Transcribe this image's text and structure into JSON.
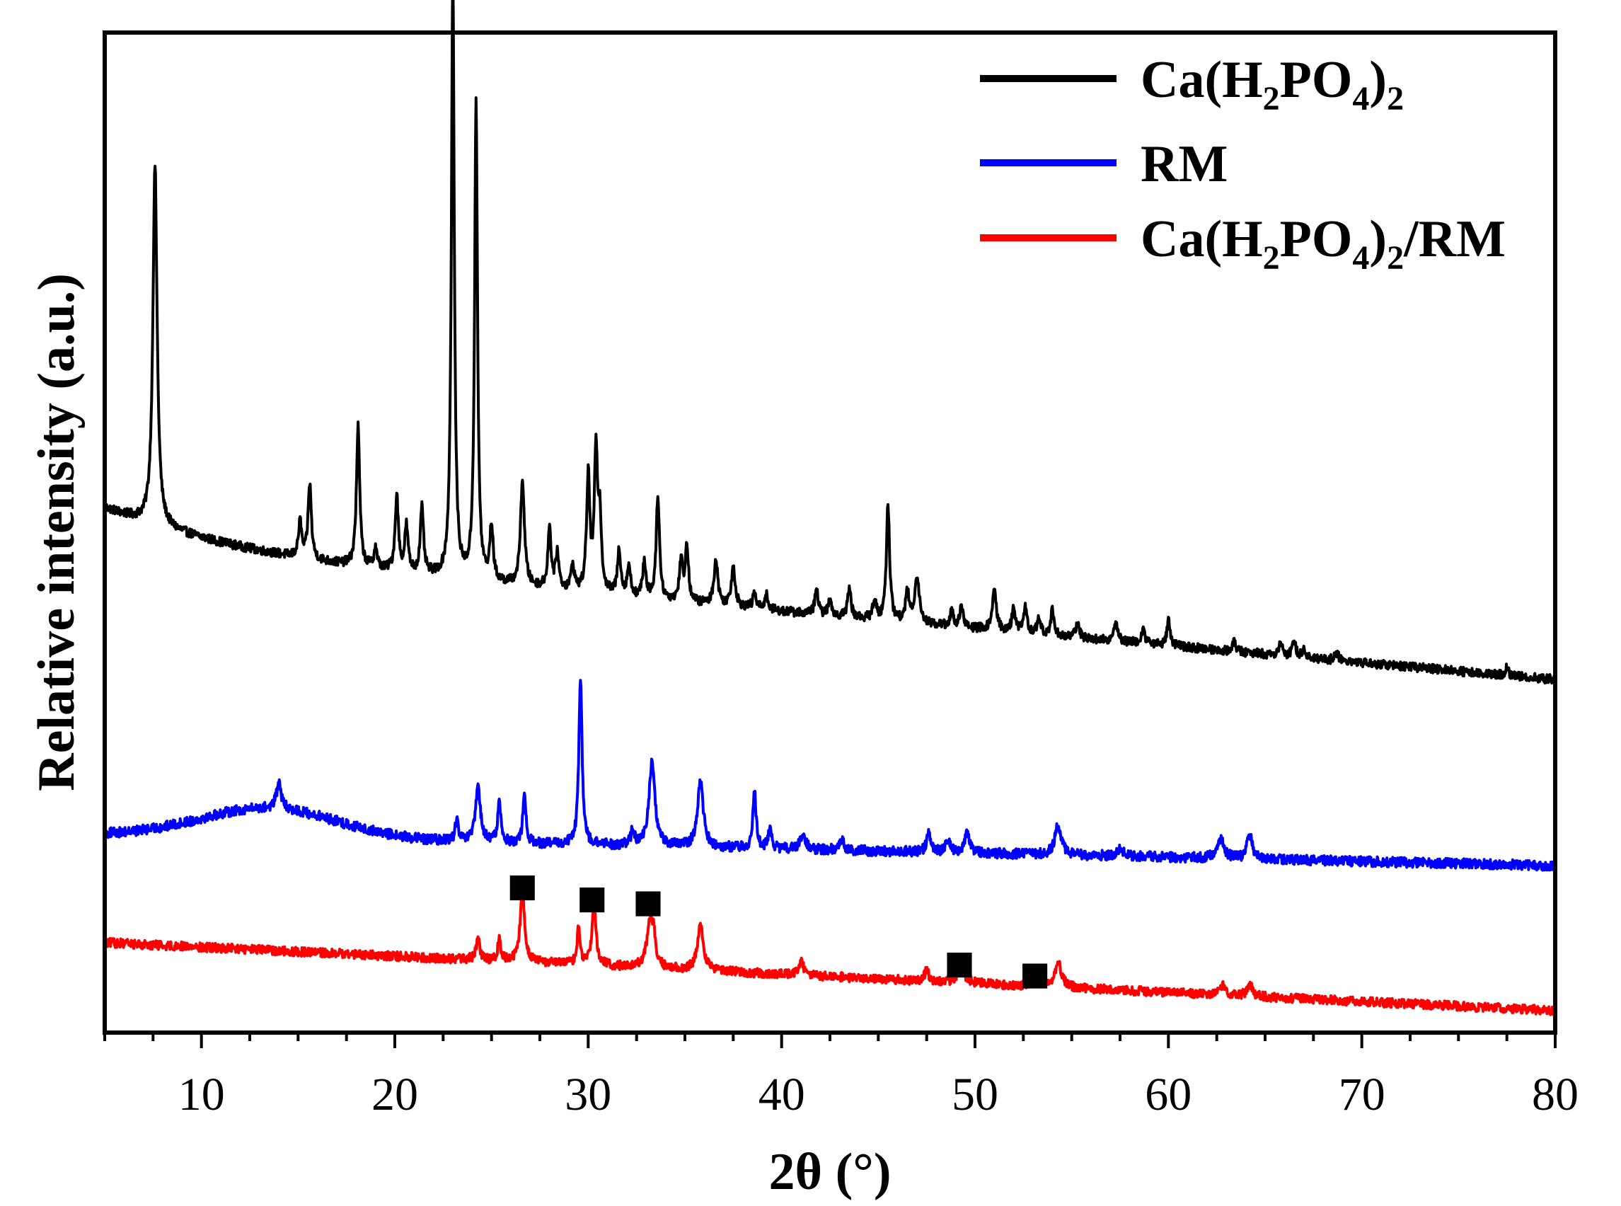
{
  "chart_data": {
    "type": "line",
    "title": "",
    "xlabel": "2θ (°)",
    "ylabel": "Relative intensity (a.u.)",
    "xlim": [
      5,
      80
    ],
    "ylim": [
      0,
      100
    ],
    "x_ticks": [
      10,
      20,
      30,
      40,
      50,
      60,
      70,
      80
    ],
    "x_tick_labels": [
      "10",
      "20",
      "30",
      "40",
      "50",
      "60",
      "70",
      "80"
    ],
    "y_ticks_shown": false,
    "legend_position": "top-right",
    "series": [
      {
        "name": "Ca(H2PO4)2",
        "legend_parts": {
          "a": "Ca(H",
          "sub1": "2",
          "b": "PO",
          "sub2": "4",
          "c": ")",
          "sub3": "2",
          "d": ""
        },
        "color": "#000000",
        "baseline_start": 48.5,
        "baseline_end": 35.8,
        "decay": 0.06,
        "noise": 0.45,
        "peaks": [
          [
            7.6,
            36.0,
            0.13
          ],
          [
            15.1,
            3.5,
            0.1
          ],
          [
            15.6,
            7.5,
            0.1
          ],
          [
            18.1,
            14.0,
            0.1
          ],
          [
            19.0,
            2.0,
            0.1
          ],
          [
            20.1,
            7.5,
            0.1
          ],
          [
            20.6,
            4.5,
            0.1
          ],
          [
            21.4,
            6.5,
            0.1
          ],
          [
            23.0,
            60.0,
            0.09
          ],
          [
            24.2,
            47.5,
            0.09
          ],
          [
            25.0,
            5.5,
            0.1
          ],
          [
            26.6,
            10.5,
            0.12
          ],
          [
            28.0,
            6.0,
            0.1
          ],
          [
            28.4,
            3.5,
            0.1
          ],
          [
            29.2,
            2.5,
            0.1
          ],
          [
            30.0,
            11.5,
            0.1
          ],
          [
            30.4,
            13.5,
            0.1
          ],
          [
            30.6,
            7.0,
            0.1
          ],
          [
            31.6,
            4.5,
            0.1
          ],
          [
            32.1,
            3.0,
            0.1
          ],
          [
            32.9,
            3.5,
            0.1
          ],
          [
            33.6,
            10.5,
            0.1
          ],
          [
            34.8,
            4.0,
            0.1
          ],
          [
            35.1,
            5.5,
            0.1
          ],
          [
            36.6,
            4.5,
            0.12
          ],
          [
            37.5,
            4.0,
            0.12
          ],
          [
            38.6,
            1.5,
            0.1
          ],
          [
            39.2,
            1.5,
            0.1
          ],
          [
            41.8,
            2.5,
            0.1
          ],
          [
            42.5,
            1.5,
            0.1
          ],
          [
            43.5,
            3.0,
            0.1
          ],
          [
            44.8,
            2.0,
            0.1
          ],
          [
            45.5,
            11.5,
            0.1
          ],
          [
            46.5,
            3.0,
            0.1
          ],
          [
            47.0,
            4.5,
            0.15
          ],
          [
            48.8,
            1.5,
            0.1
          ],
          [
            49.3,
            2.0,
            0.1
          ],
          [
            51.0,
            4.0,
            0.12
          ],
          [
            52.0,
            2.5,
            0.1
          ],
          [
            52.6,
            2.5,
            0.1
          ],
          [
            53.3,
            1.5,
            0.1
          ],
          [
            54.0,
            2.5,
            0.1
          ],
          [
            55.3,
            1.5,
            0.1
          ],
          [
            57.3,
            2.0,
            0.1
          ],
          [
            58.7,
            1.5,
            0.1
          ],
          [
            60.0,
            2.5,
            0.1
          ],
          [
            63.4,
            1.0,
            0.1
          ],
          [
            65.8,
            1.5,
            0.1
          ],
          [
            66.5,
            1.5,
            0.1
          ],
          [
            67.0,
            1.0,
            0.1
          ],
          [
            68.7,
            0.8,
            0.1
          ],
          [
            77.5,
            0.8,
            0.1
          ]
        ]
      },
      {
        "name": "RM",
        "legend_parts": {
          "a": "RM",
          "sub1": "",
          "b": "",
          "sub2": "",
          "c": "",
          "sub3": "",
          "d": ""
        },
        "color": "#0000ff",
        "baseline_start": 19.8,
        "baseline_end": 16.7,
        "decay": 0.0,
        "noise": 0.5,
        "hump": [
          13.5,
          3.0,
          5.0
        ],
        "peaks": [
          [
            14.0,
            2.5,
            0.15
          ],
          [
            23.2,
            2.0,
            0.1
          ],
          [
            24.3,
            5.5,
            0.15
          ],
          [
            25.4,
            4.0,
            0.1
          ],
          [
            26.7,
            4.5,
            0.1
          ],
          [
            29.6,
            16.5,
            0.1
          ],
          [
            32.3,
            1.5,
            0.1
          ],
          [
            33.3,
            8.5,
            0.18
          ],
          [
            35.8,
            6.5,
            0.18
          ],
          [
            38.6,
            5.5,
            0.1
          ],
          [
            39.4,
            2.0,
            0.1
          ],
          [
            41.1,
            1.5,
            0.15
          ],
          [
            43.1,
            1.0,
            0.15
          ],
          [
            47.6,
            2.0,
            0.12
          ],
          [
            48.6,
            1.5,
            0.12
          ],
          [
            49.6,
            2.0,
            0.15
          ],
          [
            54.3,
            3.0,
            0.2
          ],
          [
            57.5,
            0.8,
            0.2
          ],
          [
            62.7,
            2.0,
            0.2
          ],
          [
            64.2,
            2.5,
            0.15
          ]
        ]
      },
      {
        "name": "Ca(H2PO4)2/RM",
        "legend_parts": {
          "a": "Ca(H",
          "sub1": "2",
          "b": "PO",
          "sub2": "4",
          "c": ")",
          "sub3": "2",
          "d": "/RM"
        },
        "color": "#ff0000",
        "baseline_start": 9.0,
        "baseline_end": 2.2,
        "decay": 0.0,
        "noise": 0.45,
        "peaks": [
          [
            24.3,
            2.0,
            0.12
          ],
          [
            25.4,
            2.0,
            0.1
          ],
          [
            26.6,
            7.0,
            0.14
          ],
          [
            29.5,
            3.5,
            0.1
          ],
          [
            30.3,
            6.5,
            0.12
          ],
          [
            33.2,
            4.5,
            0.2
          ],
          [
            33.4,
            2.0,
            0.1
          ],
          [
            35.8,
            4.5,
            0.18
          ],
          [
            41.0,
            1.5,
            0.15
          ],
          [
            47.5,
            1.2,
            0.12
          ],
          [
            49.3,
            1.5,
            0.2
          ],
          [
            53.2,
            0.8,
            0.15
          ],
          [
            54.3,
            2.5,
            0.2
          ],
          [
            62.8,
            1.0,
            0.15
          ],
          [
            64.2,
            1.3,
            0.15
          ]
        ]
      }
    ],
    "markers": [
      {
        "label": "■",
        "x": 26.6,
        "y": 14.5
      },
      {
        "label": "■",
        "x": 30.2,
        "y": 13.3
      },
      {
        "label": "■",
        "x": 33.1,
        "y": 12.9
      },
      {
        "label": "■",
        "x": 49.2,
        "y": 6.8
      },
      {
        "label": "■",
        "x": 53.1,
        "y": 5.7
      }
    ]
  }
}
